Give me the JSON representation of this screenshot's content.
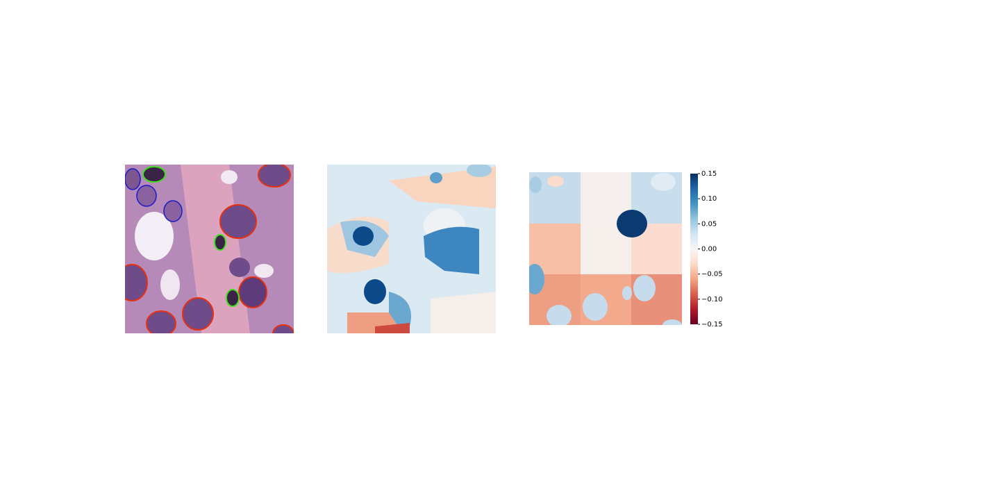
{
  "chart_data": {
    "type": "colorbar",
    "colormap": "RdBu",
    "ylim": [
      -0.15,
      0.15
    ],
    "yticks": [
      0.15,
      {
        "value": 0.1,
        "label": "0.10"
      },
      0.05,
      {
        "value": 0,
        "label": "0.00"
      },
      {
        "value": -0.05,
        "label": "−0.05"
      },
      {
        "value": -0.1,
        "label": "−0.10"
      },
      {
        "value": -0.15,
        "label": "−0.15"
      }
    ]
  }
}
